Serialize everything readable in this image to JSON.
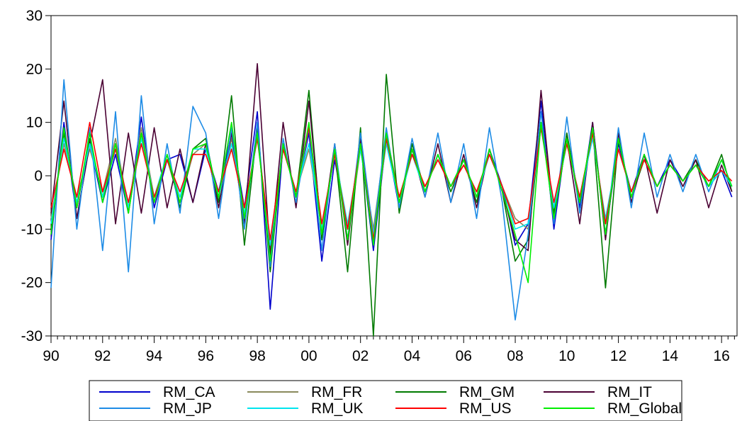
{
  "chart_data": {
    "type": "line",
    "title": "",
    "xlabel": "",
    "ylabel": "",
    "x_range": [
      1990.0,
      2016.6
    ],
    "ylim": [
      -30,
      30
    ],
    "y_ticks": [
      -30,
      -20,
      -10,
      0,
      10,
      20,
      30
    ],
    "x_tick_labels": [
      "90",
      "92",
      "94",
      "96",
      "98",
      "00",
      "02",
      "04",
      "06",
      "08",
      "10",
      "12",
      "14",
      "16"
    ],
    "x_tick_years": [
      1990,
      1992,
      1994,
      1996,
      1998,
      2000,
      2002,
      2004,
      2006,
      2008,
      2010,
      2012,
      2014,
      2016
    ],
    "grid": false,
    "legend_position": "bottom",
    "x": [
      1990.0,
      1990.5,
      1991.0,
      1991.5,
      1992.0,
      1992.5,
      1993.0,
      1993.5,
      1994.0,
      1994.5,
      1995.0,
      1995.5,
      1996.0,
      1996.5,
      1997.0,
      1997.5,
      1998.0,
      1998.5,
      1999.0,
      1999.5,
      2000.0,
      2000.5,
      2001.0,
      2001.5,
      2002.0,
      2002.5,
      2003.0,
      2003.5,
      2004.0,
      2004.5,
      2005.0,
      2005.5,
      2006.0,
      2006.5,
      2007.0,
      2007.5,
      2008.0,
      2008.5,
      2009.0,
      2009.5,
      2010.0,
      2010.5,
      2011.0,
      2011.5,
      2012.0,
      2012.5,
      2013.0,
      2013.5,
      2014.0,
      2014.5,
      2015.0,
      2015.5,
      2016.0,
      2016.4
    ],
    "series": [
      {
        "name": "RM_CA",
        "color": "#0000cc",
        "values": [
          -12,
          10,
          -8,
          6,
          -5,
          4,
          -7,
          11,
          -6,
          3,
          4,
          -5,
          5,
          -3,
          8,
          -6,
          12,
          -25,
          6,
          -4,
          8,
          -16,
          3,
          -10,
          6,
          -14,
          7,
          -6,
          5,
          -3,
          4,
          -2,
          3,
          -4,
          5,
          -2,
          -13,
          -9,
          14,
          -10,
          8,
          -6,
          10,
          -11,
          6,
          -3,
          4,
          -2,
          3,
          -1,
          2,
          -2,
          1,
          -4
        ]
      },
      {
        "name": "RM_FR",
        "color": "#8a8a5c",
        "values": [
          -8,
          6,
          -4,
          5,
          -3,
          7,
          -6,
          9,
          -4,
          3,
          -5,
          4,
          6,
          -4,
          7,
          -8,
          8,
          -14,
          5,
          -3,
          5,
          -10,
          4,
          -12,
          5,
          -10,
          8,
          -4,
          4,
          -2,
          3,
          -2,
          2,
          -3,
          4,
          -2,
          -8,
          -10,
          10,
          -6,
          6,
          -4,
          8,
          -9,
          5,
          -3,
          3,
          -2,
          2,
          -1,
          2,
          -1,
          1,
          -2
        ]
      },
      {
        "name": "RM_GM",
        "color": "#007a00",
        "values": [
          -10,
          8,
          -6,
          7,
          -4,
          6,
          -7,
          8,
          -5,
          4,
          -6,
          5,
          7,
          -5,
          15,
          -13,
          9,
          -18,
          6,
          -4,
          16,
          -12,
          5,
          -18,
          9,
          -30,
          19,
          -7,
          6,
          -3,
          4,
          -3,
          3,
          -5,
          5,
          -3,
          -16,
          -12,
          10,
          -7,
          8,
          -5,
          9,
          -21,
          7,
          -4,
          3,
          -2,
          2,
          -1,
          3,
          -2,
          4,
          -3
        ]
      },
      {
        "name": "RM_IT",
        "color": "#4a0033",
        "values": [
          -7,
          14,
          -8,
          6,
          18,
          -9,
          8,
          -7,
          9,
          -6,
          5,
          -5,
          6,
          -6,
          8,
          -9,
          21,
          -15,
          10,
          -6,
          14,
          -11,
          6,
          -13,
          7,
          -12,
          8,
          -5,
          5,
          -4,
          6,
          -5,
          4,
          -6,
          5,
          -3,
          -12,
          -14,
          16,
          -8,
          7,
          -9,
          10,
          -12,
          8,
          -5,
          4,
          -7,
          3,
          -2,
          3,
          -6,
          2,
          -3
        ]
      },
      {
        "name": "RM_JP",
        "color": "#1e8ce6",
        "values": [
          -21,
          18,
          -10,
          9,
          -14,
          12,
          -18,
          15,
          -9,
          6,
          -7,
          13,
          8,
          -8,
          9,
          -10,
          10,
          -17,
          7,
          -5,
          9,
          -14,
          6,
          -12,
          8,
          -11,
          9,
          -6,
          7,
          -4,
          8,
          -5,
          6,
          -8,
          9,
          -5,
          -27,
          -11,
          12,
          -9,
          11,
          -7,
          9,
          -11,
          9,
          -6,
          8,
          -4,
          4,
          -3,
          4,
          -3,
          3,
          -2
        ]
      },
      {
        "name": "RM_UK",
        "color": "#00e5ee",
        "values": [
          -9,
          7,
          -5,
          6,
          -4,
          5,
          -6,
          7,
          -4,
          4,
          -4,
          5,
          5,
          -4,
          6,
          -7,
          7,
          -13,
          5,
          -3,
          6,
          -10,
          4,
          -9,
          5,
          -11,
          6,
          -5,
          4,
          -3,
          4,
          -2,
          3,
          -4,
          4,
          -2,
          -10,
          -9,
          9,
          -6,
          6,
          -4,
          7,
          -8,
          5,
          -3,
          3,
          -2,
          2,
          -1,
          2,
          -2,
          1,
          -2
        ]
      },
      {
        "name": "RM_US",
        "color": "#ff0000",
        "values": [
          -6,
          5,
          -4,
          10,
          -3,
          5,
          -5,
          6,
          -4,
          3,
          -3,
          4,
          4,
          -3,
          5,
          -6,
          7,
          -12,
          5,
          -3,
          9,
          -9,
          4,
          -10,
          6,
          -12,
          7,
          -4,
          4,
          -2,
          3,
          -2,
          2,
          -3,
          4,
          -2,
          -9,
          -8,
          9,
          -5,
          6,
          -4,
          8,
          -9,
          5,
          -3,
          3,
          -2,
          2,
          -1,
          2,
          -1,
          1,
          -1
        ]
      },
      {
        "name": "RM_Global",
        "color": "#00ee00",
        "values": [
          -11,
          9,
          -6,
          8,
          -5,
          6,
          -7,
          8,
          -5,
          4,
          -5,
          5,
          6,
          -4,
          10,
          -8,
          8,
          -16,
          6,
          -4,
          10,
          -11,
          5,
          -12,
          6,
          -13,
          8,
          -5,
          5,
          -3,
          4,
          -2,
          3,
          -4,
          5,
          -3,
          -11,
          -20,
          10,
          -8,
          7,
          -5,
          9,
          -11,
          7,
          -4,
          4,
          -2,
          2,
          -1,
          2,
          -2,
          3,
          -2
        ]
      }
    ]
  }
}
